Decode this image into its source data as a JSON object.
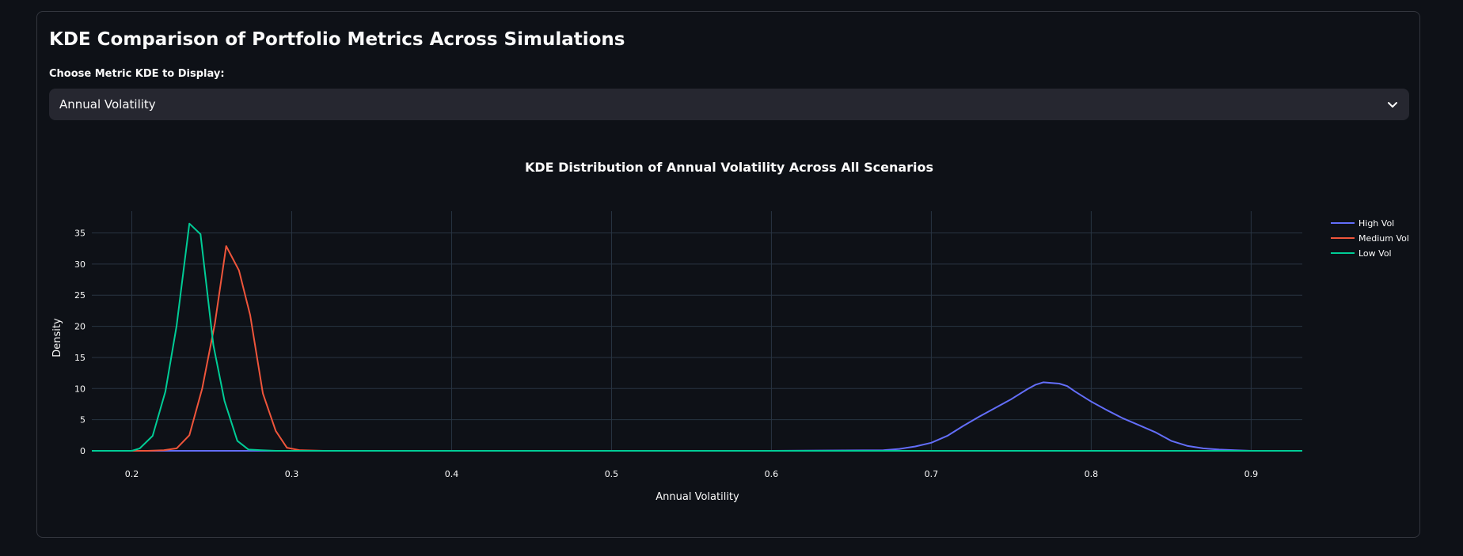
{
  "page": {
    "title": "KDE Comparison of Portfolio Metrics Across Simulations",
    "select_label": "Choose Metric KDE to Display:",
    "selected_metric": "Annual Volatility"
  },
  "chart_data": {
    "type": "line",
    "title": "KDE Distribution of Annual Volatility Across All Scenarios",
    "xlabel": "Annual Volatility",
    "ylabel": "Density",
    "xlim": [
      0.175,
      0.932
    ],
    "ylim": [
      0,
      38.5
    ],
    "xticks": [
      0.2,
      0.3,
      0.4,
      0.5,
      0.6,
      0.7,
      0.8,
      0.9
    ],
    "yticks": [
      0,
      5,
      10,
      15,
      20,
      25,
      30,
      35
    ],
    "grid": true,
    "legend_position": "top-right",
    "series": [
      {
        "name": "High Vol",
        "color": "#636efa",
        "x": [
          0.175,
          0.6,
          0.67,
          0.68,
          0.69,
          0.7,
          0.71,
          0.72,
          0.73,
          0.74,
          0.75,
          0.76,
          0.765,
          0.77,
          0.78,
          0.785,
          0.79,
          0.8,
          0.81,
          0.82,
          0.83,
          0.84,
          0.85,
          0.86,
          0.87,
          0.88,
          0.89,
          0.9,
          0.932
        ],
        "y": [
          0,
          0,
          0.1,
          0.3,
          0.7,
          1.3,
          2.4,
          4.0,
          5.5,
          6.9,
          8.3,
          9.9,
          10.6,
          11.0,
          10.8,
          10.4,
          9.5,
          7.9,
          6.5,
          5.2,
          4.1,
          3.0,
          1.6,
          0.8,
          0.4,
          0.2,
          0.1,
          0,
          0
        ]
      },
      {
        "name": "Medium Vol",
        "color": "#ef553b",
        "x": [
          0.175,
          0.2,
          0.21,
          0.22,
          0.228,
          0.236,
          0.244,
          0.252,
          0.259,
          0.267,
          0.274,
          0.282,
          0.29,
          0.297,
          0.305,
          0.32,
          0.932
        ],
        "y": [
          0,
          0,
          0,
          0.1,
          0.4,
          2.5,
          10,
          20.5,
          32.9,
          29,
          21.8,
          9.2,
          3.2,
          0.5,
          0.1,
          0,
          0
        ]
      },
      {
        "name": "Low Vol",
        "color": "#00cc96",
        "x": [
          0.175,
          0.2,
          0.205,
          0.213,
          0.221,
          0.228,
          0.236,
          0.243,
          0.251,
          0.258,
          0.266,
          0.273,
          0.281,
          0.29,
          0.932
        ],
        "y": [
          0,
          0,
          0.4,
          2.4,
          9.5,
          20.1,
          36.5,
          34.8,
          17,
          8,
          1.6,
          0.2,
          0.1,
          0,
          0
        ]
      }
    ]
  }
}
